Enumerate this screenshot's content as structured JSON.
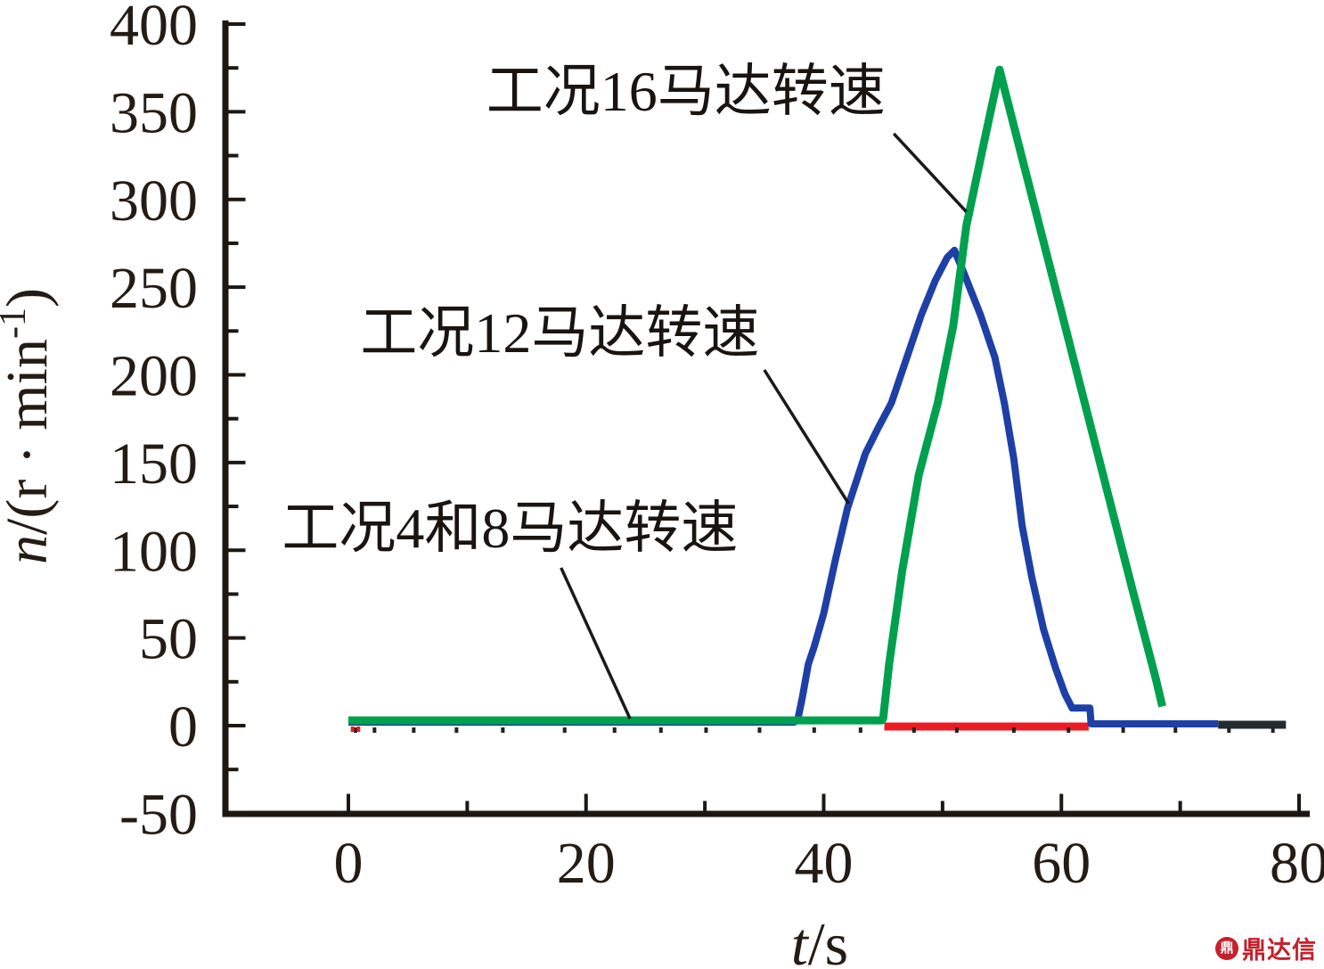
{
  "chart_data": {
    "type": "line",
    "title": "",
    "x_axis": {
      "label_var": "t",
      "label_rest": "/s",
      "min": 0,
      "max": 80,
      "major_ticks": [
        0,
        20,
        40,
        60,
        80
      ],
      "minor_ticks": [
        10,
        30,
        50,
        70
      ],
      "tick_labels": [
        "0",
        "20",
        "40",
        "60",
        "80"
      ]
    },
    "y_axis": {
      "label_var": "n",
      "label_rest": "/(r · min",
      "label_sup": "-1",
      "label_close": ")",
      "min": -50,
      "max": 400,
      "major_ticks": [
        -50,
        0,
        50,
        100,
        150,
        200,
        250,
        300,
        350,
        400
      ],
      "minor_ticks": [
        -25,
        25,
        75,
        125,
        175,
        225,
        275,
        325,
        375
      ],
      "tick_labels": [
        "-50",
        "0",
        "50",
        "100",
        "150",
        "200",
        "250",
        "300",
        "350",
        "400"
      ]
    },
    "grid": false,
    "legend": "none (leader-line annotations)",
    "series": [
      {
        "name": "工况4马达转速(红)",
        "color": "#ec1c24",
        "width": 9,
        "points": [
          [
            45.1,
            -0.5
          ],
          [
            50,
            -0.5
          ],
          [
            55,
            -0.5
          ],
          [
            60,
            -0.5
          ],
          [
            62.3,
            -0.5
          ]
        ]
      },
      {
        "name": "工况8马达转速(黑)",
        "color": "#232a30",
        "width": 9,
        "points": [
          [
            73.2,
            0.5
          ],
          [
            75,
            0.5
          ],
          [
            77,
            0.5
          ],
          [
            78.9,
            0.5
          ]
        ]
      },
      {
        "name": "工况12马达转速",
        "color": "#1e40a6",
        "width": 8,
        "points": [
          [
            0,
            2
          ],
          [
            10,
            2
          ],
          [
            20,
            2
          ],
          [
            30,
            2
          ],
          [
            37.5,
            2
          ],
          [
            37.8,
            3
          ],
          [
            38.2,
            16
          ],
          [
            38.7,
            35
          ],
          [
            39.2,
            45
          ],
          [
            40,
            64
          ],
          [
            41,
            95
          ],
          [
            42,
            124
          ],
          [
            43.5,
            155
          ],
          [
            44.6,
            170
          ],
          [
            45.7,
            184
          ],
          [
            47,
            210
          ],
          [
            48.2,
            234
          ],
          [
            49.4,
            254
          ],
          [
            50.4,
            267
          ],
          [
            51,
            271
          ],
          [
            51.8,
            258
          ],
          [
            53.2,
            234
          ],
          [
            54.4,
            210
          ],
          [
            55.2,
            184
          ],
          [
            56,
            152
          ],
          [
            56.7,
            114
          ],
          [
            57.5,
            85
          ],
          [
            58.5,
            55
          ],
          [
            59.5,
            33
          ],
          [
            60.3,
            18
          ],
          [
            60.9,
            10
          ],
          [
            62.4,
            10
          ],
          [
            62.5,
            1
          ],
          [
            65,
            1
          ],
          [
            69,
            1
          ],
          [
            73.2,
            1
          ]
        ]
      },
      {
        "name": "工况16马达转速",
        "color": "#00a04e",
        "width": 9,
        "points": [
          [
            0,
            3
          ],
          [
            10,
            3
          ],
          [
            20,
            3
          ],
          [
            30,
            3
          ],
          [
            40,
            3
          ],
          [
            44.9,
            3
          ],
          [
            45,
            4
          ],
          [
            45.5,
            35
          ],
          [
            46.6,
            88
          ],
          [
            48,
            143
          ],
          [
            49.6,
            184
          ],
          [
            50.9,
            228
          ],
          [
            52,
            285
          ],
          [
            53.5,
            333
          ],
          [
            54.8,
            374
          ],
          [
            56,
            342
          ],
          [
            58,
            289
          ],
          [
            60,
            236
          ],
          [
            62,
            183
          ],
          [
            64,
            130
          ],
          [
            66,
            77
          ],
          [
            67.9,
            28
          ],
          [
            68.5,
            11
          ]
        ]
      }
    ],
    "annotations": [
      {
        "text": "工况16马达转速",
        "label_t": 28.4,
        "label_n": 361.9,
        "leader": [
          [
            45.9,
            337.5
          ],
          [
            52.0,
            293.0
          ]
        ]
      },
      {
        "text": "工况12马达转速",
        "label_t": 17.8,
        "label_n": 224.1,
        "leader": [
          [
            35.0,
            202.8
          ],
          [
            42.1,
            126.5
          ]
        ]
      },
      {
        "text": "工况4和8马达转速",
        "label_t": 13.6,
        "label_n": 112.8,
        "leader": [
          [
            17.9,
            90.0
          ],
          [
            23.7,
            4.0
          ]
        ]
      }
    ],
    "noise": {
      "black_tick_times": [
        0.6,
        2.2,
        5.5,
        9.1,
        13.0,
        18.2,
        22.4,
        26.3,
        30.1,
        34.6,
        39.2,
        43.1,
        47.6,
        51.2,
        56.0,
        60.6,
        65.2,
        69.6,
        74.1,
        77.8
      ],
      "red_tick_times": [
        0.35,
        0.85
      ]
    }
  },
  "watermark": {
    "icon_glyph": "鼎",
    "text": "鼎达信"
  },
  "colors": {
    "axis": "#1e1711",
    "tick_text": "#241c14",
    "annotation_text": "#1a1410",
    "leader_line": "#1a1a1a",
    "series_green": "#00a04e",
    "series_blue": "#1e40a6",
    "series_red": "#ec1c24",
    "series_black": "#232a30",
    "watermark_red": "#c5202b"
  }
}
